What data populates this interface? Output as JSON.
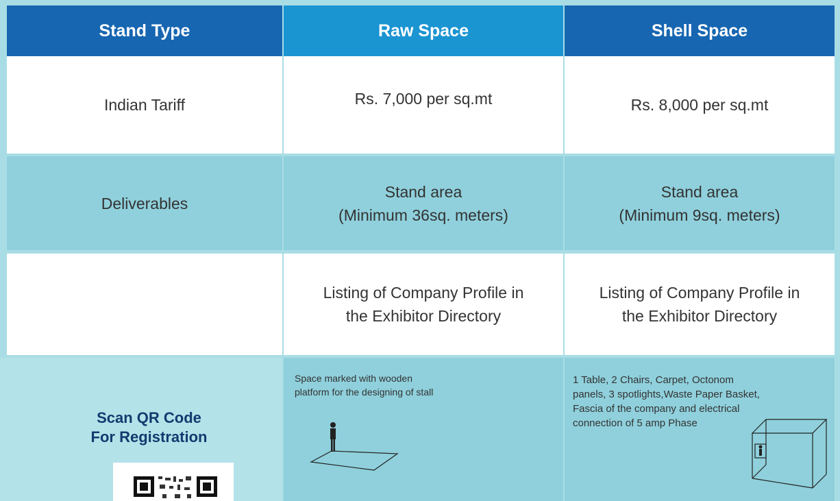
{
  "table": {
    "header": [
      "Stand Type",
      "Raw Space",
      "Shell Space"
    ],
    "rows": [
      {
        "label": "Indian Tariff",
        "cells": [
          [
            "Rs. 7,000 per sq.mt"
          ],
          [
            "Rs. 8,000 per sq.mt"
          ]
        ]
      },
      {
        "label": "Deliverables",
        "cells": [
          [
            "Stand area",
            "(Minimum 36sq. meters)"
          ],
          [
            "Stand area",
            "(Minimum 9sq. meters)"
          ]
        ]
      },
      {
        "cells": [
          [
            "Listing of Company Profile in",
            "the Exhibitor Directory"
          ],
          [
            "Listing of Company Profile in",
            "the Exhibitor Directory"
          ]
        ]
      }
    ]
  },
  "footer": {
    "qr_caption": [
      "Scan QR Code",
      "For Registration"
    ],
    "raw_note": [
      "Space marked with wooden",
      "platform for the designing of stall"
    ],
    "shell_note": [
      "1 Table, 2 Chairs, Carpet, Octonom",
      "panels, 3 spotlights,Waste Paper Basket,",
      "Fascia of the company and electrical",
      "connection of 5 amp Phase"
    ]
  }
}
